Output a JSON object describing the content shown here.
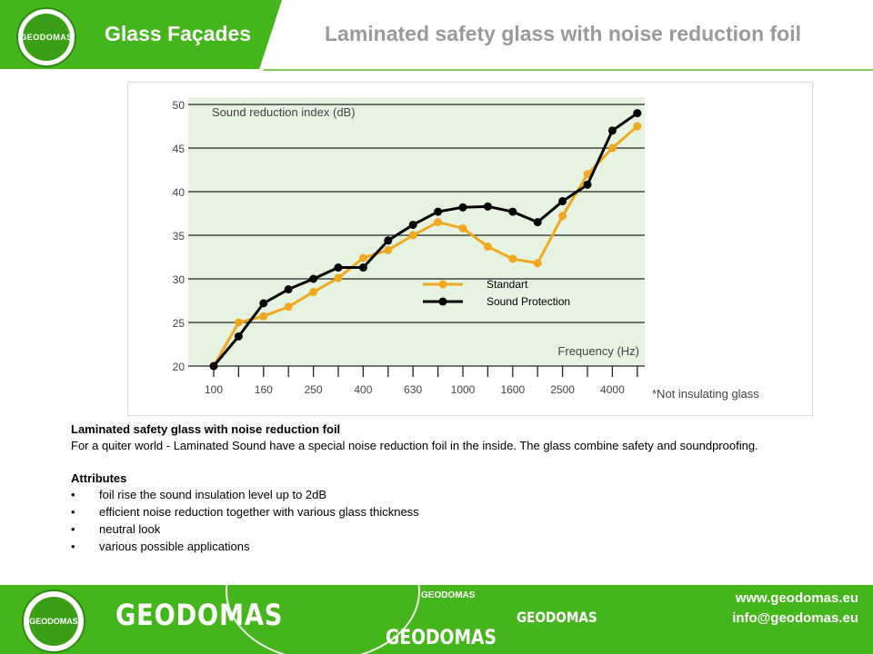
{
  "header": {
    "logo_text": "GEODOMAS",
    "section_title": "Glass Façades",
    "page_title": "Laminated safety glass with noise reduction foil"
  },
  "chart_data": {
    "type": "line",
    "ylabel": "Sound reduction index (dB)",
    "xlabel": "Frequency (Hz)",
    "note": "*Not insulating glass",
    "ylim": [
      20,
      50
    ],
    "yticks": [
      20,
      25,
      30,
      35,
      40,
      45,
      50
    ],
    "xticks": [
      "100",
      "160",
      "250",
      "400",
      "630",
      "1000",
      "1600",
      "2500",
      "4000"
    ],
    "x": [
      100,
      125,
      160,
      200,
      250,
      315,
      400,
      500,
      630,
      800,
      1000,
      1250,
      1600,
      2000,
      2500,
      3150,
      4000,
      5000
    ],
    "grid": true,
    "legend_position": "center-right",
    "series": [
      {
        "name": "Standart",
        "color": "#f0a820",
        "values": [
          20,
          25,
          25.7,
          26.8,
          28.5,
          30.1,
          32.4,
          33.3,
          35,
          36.5,
          35.8,
          33.7,
          32.3,
          31.8,
          37.2,
          42,
          45,
          47.5
        ]
      },
      {
        "name": "Sound Protection",
        "color": "#000000",
        "values": [
          20,
          23.4,
          27.2,
          28.8,
          30,
          31.3,
          31.3,
          34.4,
          36.2,
          37.7,
          38.2,
          38.3,
          37.7,
          36.5,
          38.9,
          40.8,
          47,
          49
        ]
      }
    ]
  },
  "description": {
    "title": "Laminated safety glass with noise reduction foil",
    "body": "For a quiter world - Laminated  Sound have a special noise reduction foil in the inside. The glass combine safety and soundproofing.",
    "attributes_title": "Attributes",
    "bullet": "•",
    "attributes": [
      "foil rise the sound insulation level up to 2dB",
      "efficient noise reduction  together with various glass thickness",
      "neutral look",
      "various possible applications"
    ]
  },
  "footer": {
    "logo_text": "GEODOMAS",
    "brand": "GEODOMAS",
    "brand_small": "GEODOMAS",
    "brand_mid": "GEODOMAS",
    "brand_right": "GEODOMAS",
    "website": "www.geodomas.eu",
    "email": "info@geodomas.eu"
  }
}
